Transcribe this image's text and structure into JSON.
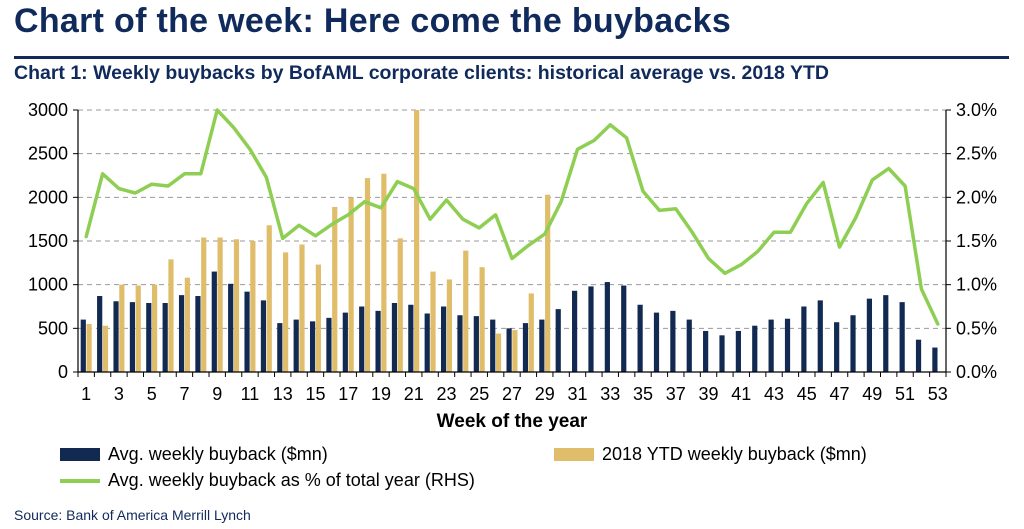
{
  "title": "Chart of the week: Here come the buybacks",
  "subtitle": "Chart 1: Weekly buybacks by BofAML corporate clients: historical average vs. 2018 YTD",
  "source": "Source:  Bank of America Merrill Lynch",
  "colors": {
    "title": "#102a5c",
    "avg_bar": "#122a52",
    "ytd_bar": "#e0bd6a",
    "line": "#8ecf53",
    "grid": "#9a9a9a"
  },
  "legend": {
    "avg": "Avg. weekly buyback ($mn)",
    "ytd": "2018 YTD weekly buyback ($mn)",
    "pct": "Avg. weekly buyback as % of total year (RHS)"
  },
  "chart_data": {
    "type": "bar+line",
    "xlabel": "Week of the year",
    "ylim": [
      0,
      3000
    ],
    "y2lim": [
      0,
      3.0
    ],
    "yticks": [
      "0",
      "500",
      "1000",
      "1500",
      "2000",
      "2500",
      "3000"
    ],
    "y2ticks": [
      "0.0%",
      "0.5%",
      "1.0%",
      "1.5%",
      "2.0%",
      "2.5%",
      "3.0%"
    ],
    "xtick_labels": [
      "1",
      "3",
      "5",
      "7",
      "9",
      "11",
      "13",
      "15",
      "17",
      "19",
      "21",
      "23",
      "25",
      "27",
      "29",
      "31",
      "33",
      "35",
      "37",
      "39",
      "41",
      "43",
      "45",
      "47",
      "49",
      "51",
      "53"
    ],
    "grid": "horizontal dashed",
    "weeks": [
      1,
      2,
      3,
      4,
      5,
      6,
      7,
      8,
      9,
      10,
      11,
      12,
      13,
      14,
      15,
      16,
      17,
      18,
      19,
      20,
      21,
      22,
      23,
      24,
      25,
      26,
      27,
      28,
      29,
      30,
      31,
      32,
      33,
      34,
      35,
      36,
      37,
      38,
      39,
      40,
      41,
      42,
      43,
      44,
      45,
      46,
      47,
      48,
      49,
      50,
      51,
      52,
      53
    ],
    "series": [
      {
        "name": "Avg. weekly buyback ($mn)",
        "type": "bar",
        "axis": "left",
        "values": [
          600,
          870,
          810,
          800,
          790,
          790,
          880,
          870,
          1150,
          1010,
          920,
          820,
          560,
          600,
          580,
          620,
          680,
          750,
          700,
          790,
          770,
          670,
          750,
          650,
          640,
          600,
          500,
          560,
          600,
          720,
          930,
          980,
          1030,
          990,
          770,
          680,
          700,
          600,
          470,
          420,
          470,
          530,
          600,
          610,
          750,
          820,
          570,
          650,
          840,
          880,
          800,
          370,
          280
        ]
      },
      {
        "name": "2018 YTD weekly buyback ($mn)",
        "type": "bar",
        "axis": "left",
        "values": [
          550,
          530,
          1000,
          990,
          1000,
          1290,
          1080,
          1540,
          1540,
          1520,
          1500,
          1680,
          1370,
          1460,
          1230,
          1890,
          2000,
          2220,
          2270,
          1530,
          3000,
          1150,
          1060,
          1390,
          1200,
          440,
          480,
          900,
          2030
        ]
      },
      {
        "name": "Avg. weekly buyback as % of total year (RHS)",
        "type": "line",
        "axis": "right",
        "values": [
          1.55,
          2.27,
          2.1,
          2.05,
          2.15,
          2.13,
          2.27,
          2.27,
          3.0,
          2.8,
          2.55,
          2.23,
          1.53,
          1.68,
          1.56,
          1.69,
          1.8,
          1.95,
          1.88,
          2.18,
          2.1,
          1.75,
          1.97,
          1.75,
          1.65,
          1.8,
          1.3,
          1.45,
          1.58,
          1.95,
          2.55,
          2.65,
          2.83,
          2.68,
          2.07,
          1.85,
          1.87,
          1.6,
          1.3,
          1.13,
          1.23,
          1.38,
          1.6,
          1.6,
          1.93,
          2.17,
          1.43,
          1.77,
          2.2,
          2.33,
          2.13,
          0.95,
          0.55
        ]
      }
    ]
  }
}
